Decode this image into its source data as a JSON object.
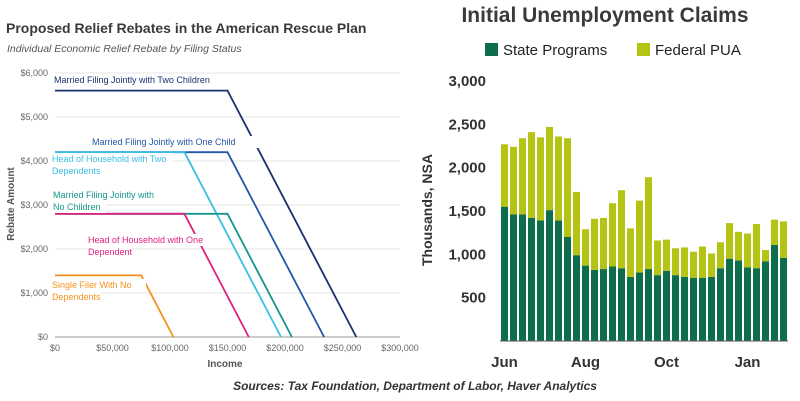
{
  "sources": "Sources: Tax Foundation, Department of Labor, Haver Analytics",
  "chart_data": [
    {
      "type": "line",
      "title": "Proposed Relief Rebates in the American Rescue Plan",
      "subtitle": "Individual Economic Relief Rebate by Filing Status",
      "xlabel": "Income",
      "ylabel": "Rebate Amount",
      "xlim": [
        0,
        300000
      ],
      "ylim": [
        0,
        6000
      ],
      "x_ticks": [
        0,
        50000,
        100000,
        150000,
        200000,
        250000,
        300000
      ],
      "x_tick_labels": [
        "$0",
        "$50,000",
        "$100,000",
        "$150,000",
        "$200,000",
        "$250,000",
        "$300,000"
      ],
      "y_ticks": [
        0,
        1000,
        2000,
        3000,
        4000,
        5000,
        6000
      ],
      "y_tick_labels": [
        "$0",
        "$1,000",
        "$2,000",
        "$3,000",
        "$4,000",
        "$5,000",
        "$6,000"
      ],
      "grid": "horizontal",
      "series": [
        {
          "name": "Married Filing Jointly with Two Children",
          "color": "#1b2f6e",
          "points": [
            [
              0,
              5600
            ],
            [
              150000,
              5600
            ],
            [
              262000,
              0
            ]
          ]
        },
        {
          "name": "Married Filing Jointly with One Child",
          "color": "#2456a8",
          "points": [
            [
              0,
              4200
            ],
            [
              150000,
              4200
            ],
            [
              234000,
              0
            ]
          ]
        },
        {
          "name": "Head of Household with Two Dependents",
          "color": "#39bfe3",
          "points": [
            [
              0,
              4200
            ],
            [
              112500,
              4200
            ],
            [
              196500,
              0
            ]
          ]
        },
        {
          "name": "Married Filing Jointly with No Children",
          "color": "#17968c",
          "points": [
            [
              0,
              2800
            ],
            [
              150000,
              2800
            ],
            [
              206000,
              0
            ]
          ]
        },
        {
          "name": "Head of Household with One Dependent",
          "color": "#e0207c",
          "points": [
            [
              0,
              2800
            ],
            [
              112500,
              2800
            ],
            [
              168500,
              0
            ]
          ]
        },
        {
          "name": "Single Filer With No Dependents",
          "color": "#f5921e",
          "points": [
            [
              0,
              1400
            ],
            [
              75000,
              1400
            ],
            [
              103000,
              0
            ]
          ]
        }
      ],
      "annotations": [
        {
          "lines": [
            "Married Filing Jointly with Two Children"
          ],
          "color": "#1b2f6e"
        },
        {
          "lines": [
            "Married Filing Jointly with One Child"
          ],
          "color": "#2456a8"
        },
        {
          "lines": [
            "Head of Household with Two",
            "Dependents"
          ],
          "color": "#39bfe3"
        },
        {
          "lines": [
            "Married Filing Jointly with",
            "No Children"
          ],
          "color": "#17968c"
        },
        {
          "lines": [
            "Head of Household with One",
            "Dependent"
          ],
          "color": "#e0207c"
        },
        {
          "lines": [
            "Single Filer With No",
            "Dependents"
          ],
          "color": "#f5921e"
        }
      ]
    },
    {
      "type": "bar",
      "stacked": true,
      "title": "Initial Unemployment Claims",
      "ylabel": "Thousands, NSA",
      "ylim": [
        0,
        3000
      ],
      "y_ticks": [
        500,
        1000,
        1500,
        2000,
        2500,
        3000
      ],
      "y_tick_labels": [
        "500",
        "1,000",
        "1,500",
        "2,000",
        "2,500",
        "3,000"
      ],
      "x_tick_labels": [
        {
          "label": "Jun",
          "bar_index": 0
        },
        {
          "label": "Aug",
          "bar_index": 9
        },
        {
          "label": "Oct",
          "bar_index": 18
        },
        {
          "label": "Jan",
          "bar_index": 27
        }
      ],
      "legend": "top",
      "grid": false,
      "series": [
        {
          "name": "State Programs",
          "color": "#0e6e4c",
          "values": [
            1550,
            1460,
            1460,
            1420,
            1390,
            1510,
            1390,
            1200,
            990,
            870,
            820,
            830,
            860,
            840,
            740,
            790,
            830,
            760,
            810,
            760,
            740,
            730,
            730,
            740,
            840,
            950,
            930,
            850,
            840,
            920,
            1110,
            960
          ]
        },
        {
          "name": "Federal PUA",
          "color": "#b5c315",
          "values": [
            720,
            780,
            880,
            990,
            960,
            960,
            970,
            1140,
            730,
            420,
            590,
            590,
            730,
            900,
            560,
            830,
            1060,
            400,
            360,
            310,
            340,
            300,
            360,
            270,
            300,
            410,
            330,
            390,
            510,
            130,
            290,
            420
          ]
        }
      ]
    }
  ]
}
